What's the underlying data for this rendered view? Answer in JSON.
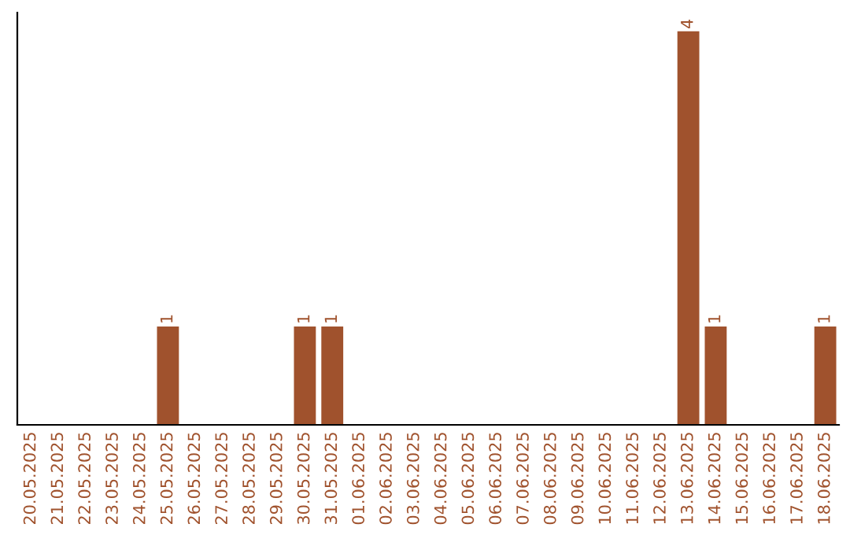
{
  "chart_data": {
    "type": "bar",
    "categories": [
      "20.05.2025",
      "21.05.2025",
      "22.05.2025",
      "23.05.2025",
      "24.05.2025",
      "25.05.2025",
      "26.05.2025",
      "27.05.2025",
      "28.05.2025",
      "29.05.2025",
      "30.05.2025",
      "31.05.2025",
      "01.06.2025",
      "02.06.2025",
      "03.06.2025",
      "04.06.2025",
      "05.06.2025",
      "06.06.2025",
      "07.06.2025",
      "08.06.2025",
      "09.06.2025",
      "10.06.2025",
      "11.06.2025",
      "12.06.2025",
      "13.06.2025",
      "14.06.2025",
      "15.06.2025",
      "16.06.2025",
      "17.06.2025",
      "18.06.2025"
    ],
    "values": [
      0,
      0,
      0,
      0,
      0,
      1,
      0,
      0,
      0,
      0,
      1,
      1,
      0,
      0,
      0,
      0,
      0,
      0,
      0,
      0,
      0,
      0,
      0,
      0,
      4,
      1,
      0,
      0,
      0,
      1
    ],
    "value_labels": [
      null,
      null,
      null,
      null,
      null,
      "1",
      null,
      null,
      null,
      null,
      "1",
      "1",
      null,
      null,
      null,
      null,
      null,
      null,
      null,
      null,
      null,
      null,
      null,
      null,
      "4",
      "1",
      null,
      null,
      null,
      "1"
    ],
    "color": "#a0522d",
    "ylim": [
      0,
      4.19
    ],
    "tick_labels": "x",
    "grid": false
  }
}
